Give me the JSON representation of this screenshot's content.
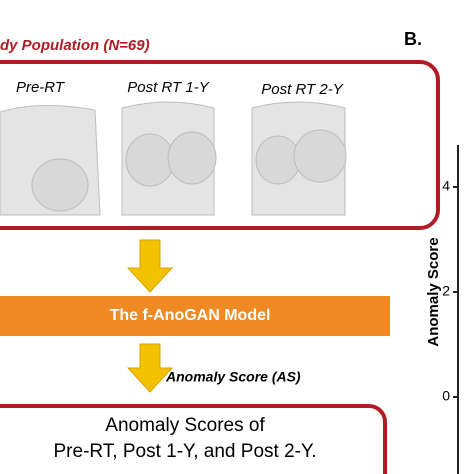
{
  "panel_a": {
    "title": "dy Population (N=69)",
    "images": [
      "Pre-RT",
      "Post RT 1-Y",
      "Post RT 2-Y"
    ],
    "model": "The f-AnoGAN Model",
    "arrow_label": "Anomaly Score (AS)",
    "output": [
      "Anomaly Scores of",
      "Pre-RT, Post 1-Y, and Post 2-Y."
    ]
  },
  "panel_b": {
    "label": "B.",
    "y_axis_label": "Anomaly Score",
    "yticks": [
      4,
      2,
      0
    ]
  }
}
